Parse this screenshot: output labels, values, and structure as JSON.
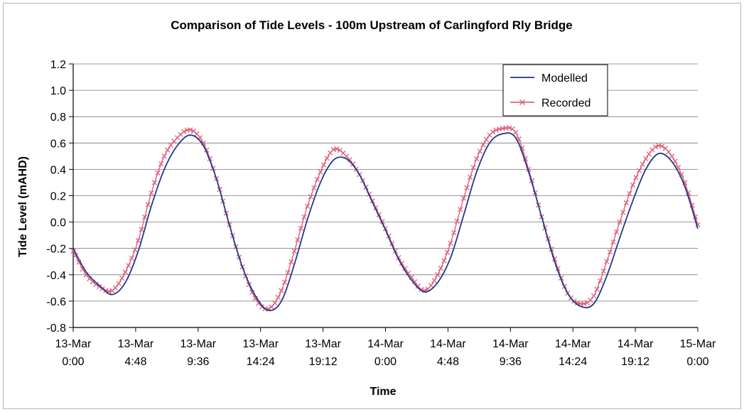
{
  "chart_data": {
    "type": "line",
    "title": "Comparison of Tide Levels - 100m Upstream of Carlingford Rly Bridge",
    "xlabel": "Time",
    "ylabel": "Tide Level (mAHD)",
    "xlim": [
      "13-Mar 0:00",
      "15-Mar 0:00"
    ],
    "ylim": [
      -0.8,
      1.2
    ],
    "y_ticks": [
      "-0.8",
      "-0.6",
      "-0.4",
      "-0.2",
      "0.0",
      "0.2",
      "0.4",
      "0.6",
      "0.8",
      "1.0",
      "1.2"
    ],
    "x_ticks": [
      {
        "date": "13-Mar",
        "time": "0:00"
      },
      {
        "date": "13-Mar",
        "time": "4:48"
      },
      {
        "date": "13-Mar",
        "time": "9:36"
      },
      {
        "date": "13-Mar",
        "time": "14:24"
      },
      {
        "date": "13-Mar",
        "time": "19:12"
      },
      {
        "date": "14-Mar",
        "time": "0:00"
      },
      {
        "date": "14-Mar",
        "time": "4:48"
      },
      {
        "date": "14-Mar",
        "time": "9:36"
      },
      {
        "date": "14-Mar",
        "time": "14:24"
      },
      {
        "date": "14-Mar",
        "time": "19:12"
      },
      {
        "date": "15-Mar",
        "time": "0:00"
      }
    ],
    "grid": "horizontal",
    "legend_position": "top-right",
    "series": [
      {
        "name": "Modelled",
        "color": "#1f3a8a",
        "marker": "none",
        "points": [
          [
            "13-Mar 0:00",
            -0.2
          ],
          [
            "13-Mar 1:00",
            -0.38
          ],
          [
            "13-Mar 2:00",
            -0.48
          ],
          [
            "13-Mar 3:00",
            -0.55
          ],
          [
            "13-Mar 4:00",
            -0.46
          ],
          [
            "13-Mar 5:00",
            -0.22
          ],
          [
            "13-Mar 6:00",
            0.12
          ],
          [
            "13-Mar 7:00",
            0.4
          ],
          [
            "13-Mar 8:00",
            0.58
          ],
          [
            "13-Mar 9:00",
            0.66
          ],
          [
            "13-Mar 10:00",
            0.58
          ],
          [
            "13-Mar 11:00",
            0.33
          ],
          [
            "13-Mar 12:00",
            -0.02
          ],
          [
            "13-Mar 13:00",
            -0.34
          ],
          [
            "13-Mar 14:00",
            -0.56
          ],
          [
            "13-Mar 15:00",
            -0.67
          ],
          [
            "13-Mar 16:00",
            -0.6
          ],
          [
            "13-Mar 17:00",
            -0.32
          ],
          [
            "13-Mar 18:00",
            0.02
          ],
          [
            "13-Mar 19:00",
            0.3
          ],
          [
            "13-Mar 20:00",
            0.47
          ],
          [
            "13-Mar 21:00",
            0.48
          ],
          [
            "13-Mar 22:00",
            0.36
          ],
          [
            "13-Mar 23:00",
            0.15
          ],
          [
            "14-Mar 0:00",
            -0.06
          ],
          [
            "14-Mar 1:00",
            -0.28
          ],
          [
            "14-Mar 2:00",
            -0.44
          ],
          [
            "14-Mar 3:00",
            -0.53
          ],
          [
            "14-Mar 4:00",
            -0.46
          ],
          [
            "14-Mar 5:00",
            -0.27
          ],
          [
            "14-Mar 6:00",
            0.05
          ],
          [
            "14-Mar 7:00",
            0.38
          ],
          [
            "14-Mar 8:00",
            0.6
          ],
          [
            "14-Mar 9:00",
            0.67
          ],
          [
            "14-Mar 10:00",
            0.64
          ],
          [
            "14-Mar 11:00",
            0.38
          ],
          [
            "14-Mar 12:00",
            0.04
          ],
          [
            "14-Mar 13:00",
            -0.3
          ],
          [
            "14-Mar 14:00",
            -0.54
          ],
          [
            "14-Mar 15:00",
            -0.64
          ],
          [
            "14-Mar 16:00",
            -0.62
          ],
          [
            "14-Mar 17:00",
            -0.41
          ],
          [
            "14-Mar 18:00",
            -0.12
          ],
          [
            "14-Mar 19:00",
            0.16
          ],
          [
            "14-Mar 20:00",
            0.4
          ],
          [
            "14-Mar 21:00",
            0.52
          ],
          [
            "14-Mar 22:00",
            0.46
          ],
          [
            "14-Mar 23:00",
            0.27
          ],
          [
            "15-Mar 0:00",
            -0.05
          ]
        ]
      },
      {
        "name": "Recorded",
        "color": "#e0607a",
        "marker": "x",
        "points": [
          [
            "13-Mar 0:00",
            -0.22
          ],
          [
            "13-Mar 1:00",
            -0.4
          ],
          [
            "13-Mar 2:00",
            -0.49
          ],
          [
            "13-Mar 3:00",
            -0.52
          ],
          [
            "13-Mar 4:00",
            -0.38
          ],
          [
            "13-Mar 5:00",
            -0.14
          ],
          [
            "13-Mar 6:00",
            0.22
          ],
          [
            "13-Mar 7:00",
            0.5
          ],
          [
            "13-Mar 8:00",
            0.64
          ],
          [
            "13-Mar 9:00",
            0.7
          ],
          [
            "13-Mar 10:00",
            0.6
          ],
          [
            "13-Mar 11:00",
            0.33
          ],
          [
            "13-Mar 12:00",
            -0.02
          ],
          [
            "13-Mar 13:00",
            -0.34
          ],
          [
            "13-Mar 14:00",
            -0.58
          ],
          [
            "13-Mar 15:00",
            -0.66
          ],
          [
            "13-Mar 16:00",
            -0.52
          ],
          [
            "13-Mar 17:00",
            -0.22
          ],
          [
            "13-Mar 18:00",
            0.12
          ],
          [
            "13-Mar 19:00",
            0.38
          ],
          [
            "13-Mar 20:00",
            0.55
          ],
          [
            "13-Mar 21:00",
            0.5
          ],
          [
            "13-Mar 22:00",
            0.36
          ],
          [
            "13-Mar 23:00",
            0.16
          ],
          [
            "14-Mar 0:00",
            -0.05
          ],
          [
            "14-Mar 1:00",
            -0.27
          ],
          [
            "14-Mar 2:00",
            -0.42
          ],
          [
            "14-Mar 3:00",
            -0.52
          ],
          [
            "14-Mar 4:00",
            -0.4
          ],
          [
            "14-Mar 5:00",
            -0.16
          ],
          [
            "14-Mar 6:00",
            0.18
          ],
          [
            "14-Mar 7:00",
            0.48
          ],
          [
            "14-Mar 8:00",
            0.66
          ],
          [
            "14-Mar 9:00",
            0.71
          ],
          [
            "14-Mar 10:00",
            0.68
          ],
          [
            "14-Mar 11:00",
            0.4
          ],
          [
            "14-Mar 12:00",
            0.04
          ],
          [
            "14-Mar 13:00",
            -0.28
          ],
          [
            "14-Mar 14:00",
            -0.54
          ],
          [
            "14-Mar 15:00",
            -0.62
          ],
          [
            "14-Mar 16:00",
            -0.56
          ],
          [
            "14-Mar 17:00",
            -0.3
          ],
          [
            "14-Mar 18:00",
            0.0
          ],
          [
            "14-Mar 19:00",
            0.28
          ],
          [
            "14-Mar 20:00",
            0.48
          ],
          [
            "14-Mar 21:00",
            0.58
          ],
          [
            "14-Mar 22:00",
            0.5
          ],
          [
            "14-Mar 23:00",
            0.3
          ],
          [
            "15-Mar 0:00",
            -0.02
          ]
        ]
      }
    ]
  }
}
